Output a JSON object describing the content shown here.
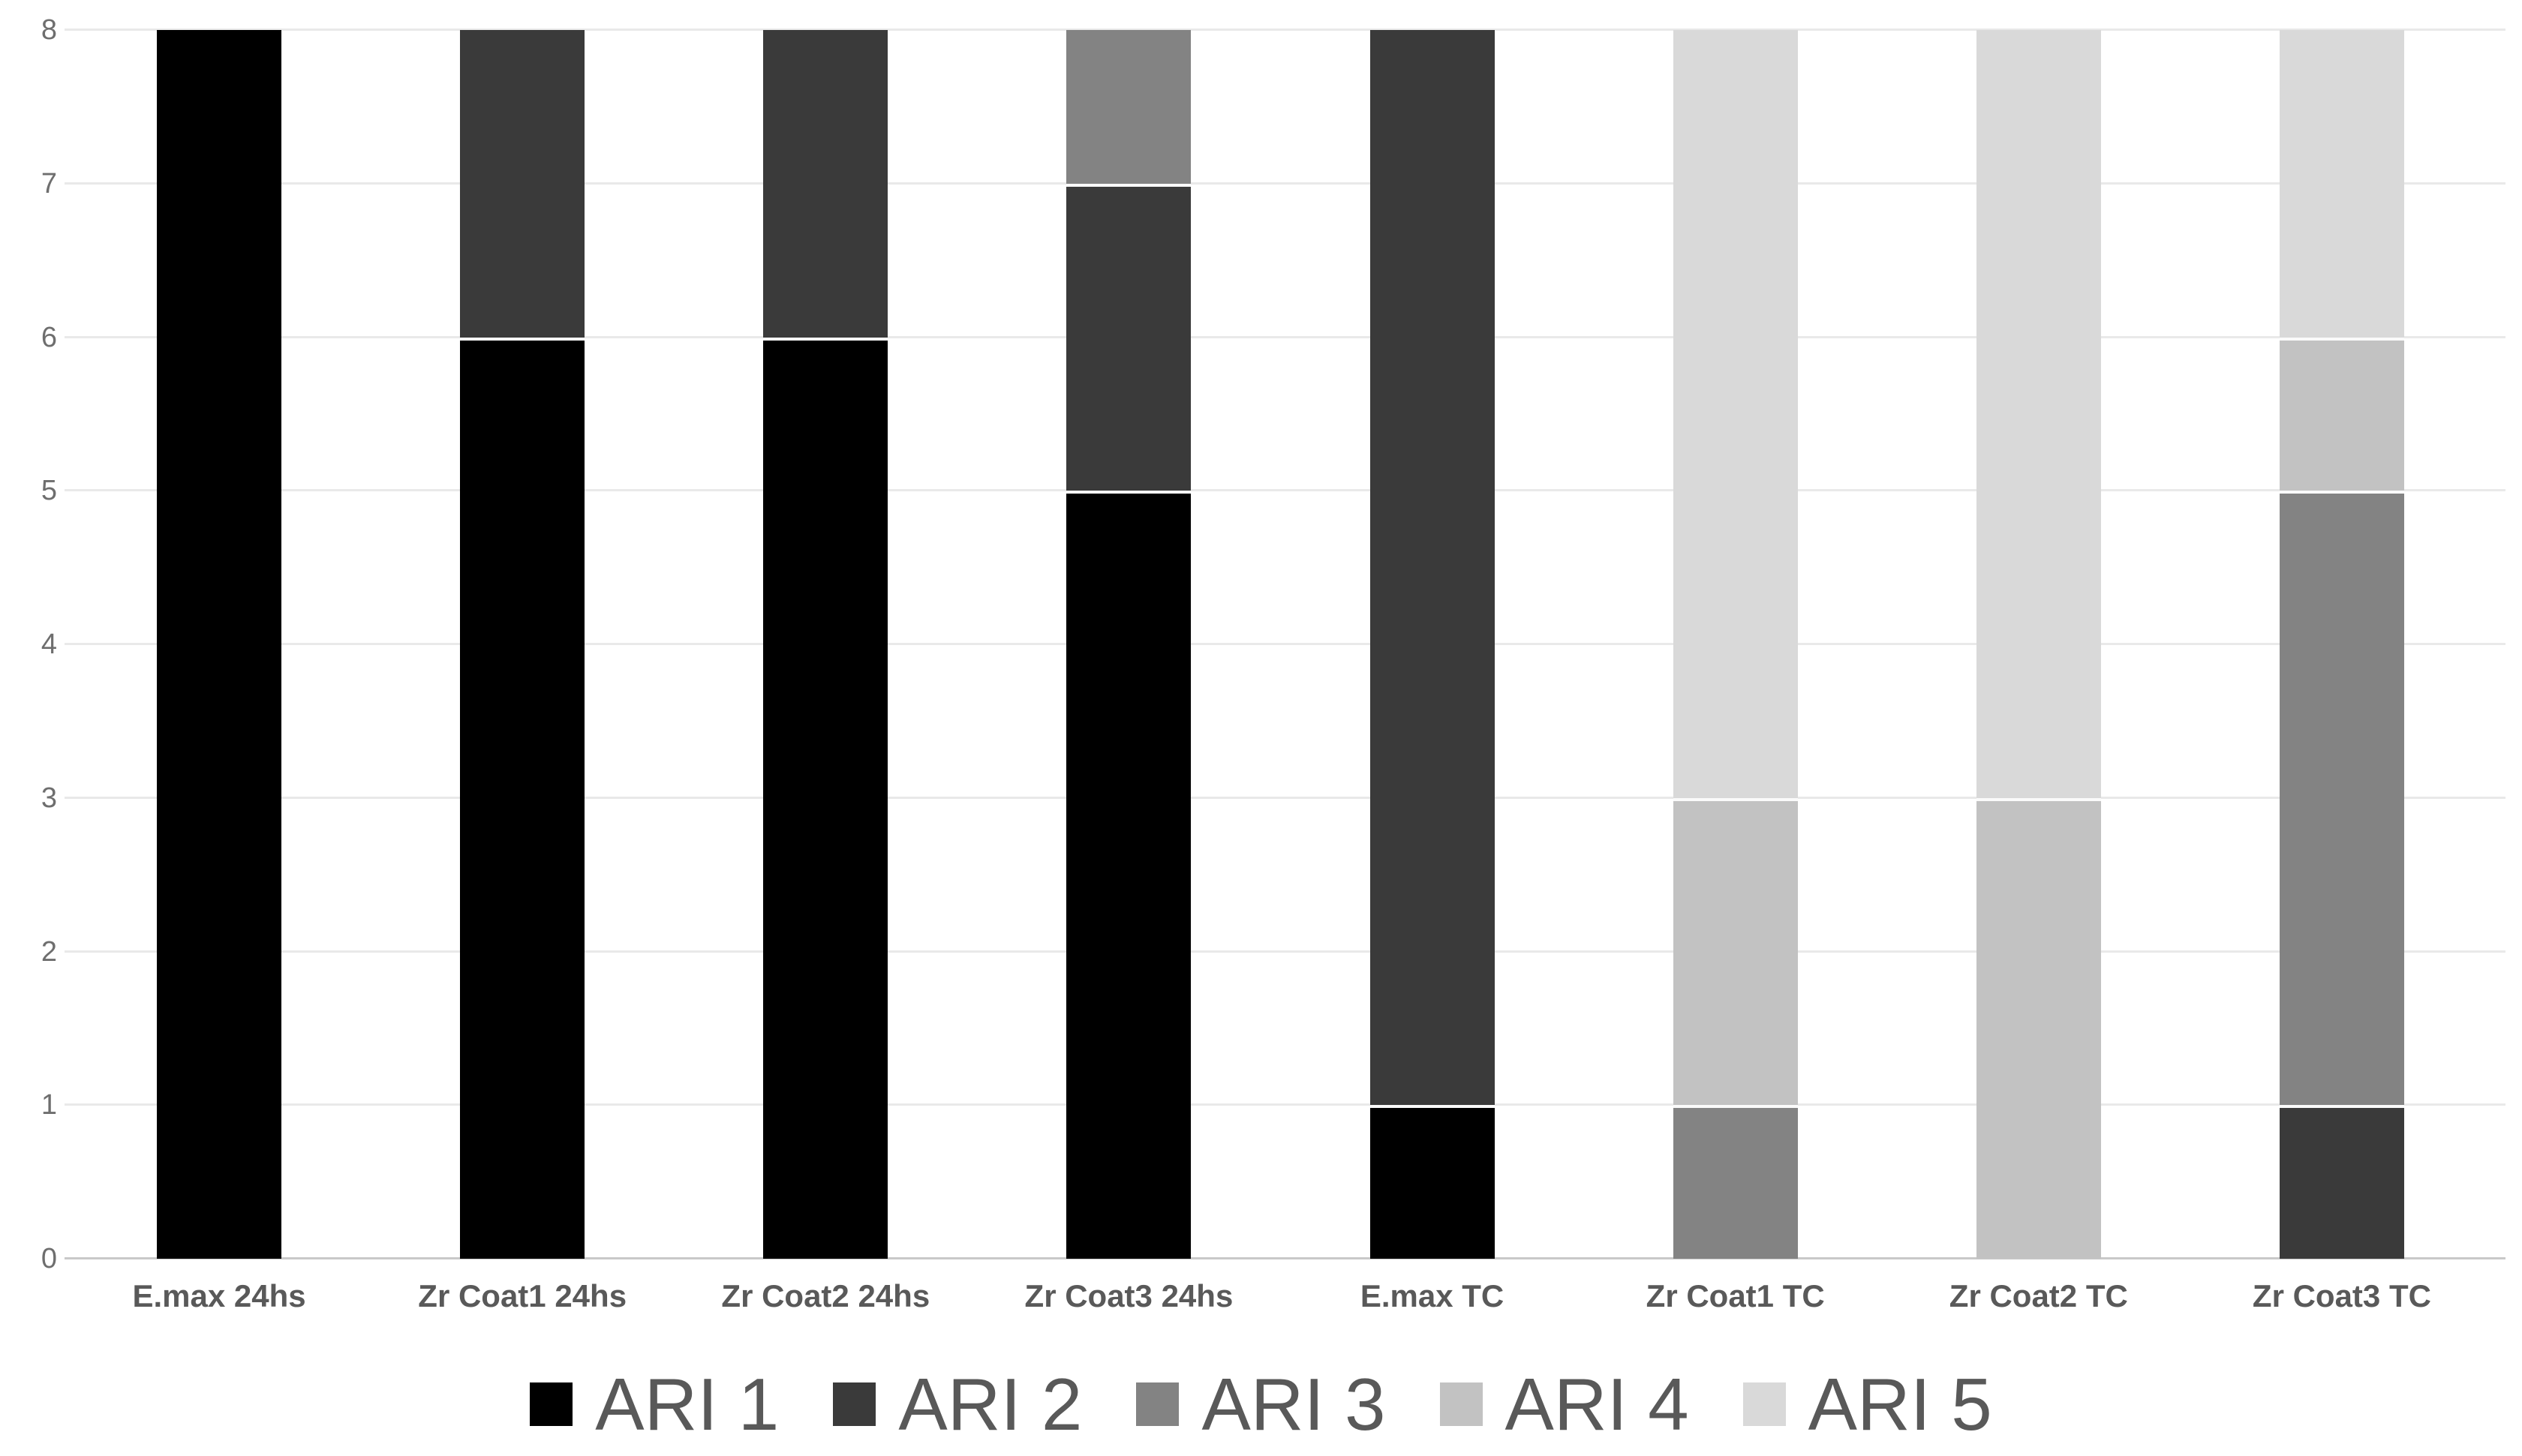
{
  "chart_data": {
    "type": "bar",
    "subtype": "stacked-vertical",
    "title": "",
    "xlabel": "",
    "ylabel": "",
    "categories": [
      "E.max 24hs",
      "Zr Coat1 24hs",
      "Zr Coat2 24hs",
      "Zr Coat3 24hs",
      "E.max TC",
      "Zr Coat1 TC",
      "Zr Coat2 TC",
      "Zr Coat3 TC"
    ],
    "series": [
      {
        "name": "ARI 1",
        "color": "#000000",
        "values": [
          8,
          6,
          6,
          5,
          1,
          0,
          0,
          0
        ]
      },
      {
        "name": "ARI 2",
        "color": "#3a3a3a",
        "values": [
          0,
          2,
          2,
          2,
          7,
          0,
          0,
          1
        ]
      },
      {
        "name": "ARI 3",
        "color": "#838383",
        "values": [
          0,
          0,
          0,
          1,
          0,
          1,
          0,
          4
        ]
      },
      {
        "name": "ARI 4",
        "color": "#c2c2c2",
        "values": [
          0,
          0,
          0,
          0,
          0,
          2,
          3,
          1
        ]
      },
      {
        "name": "ARI 5",
        "color": "#d9d9d9",
        "values": [
          0,
          0,
          0,
          0,
          0,
          5,
          5,
          2
        ]
      }
    ],
    "ylim": [
      0,
      8
    ],
    "yticks": [
      0,
      1,
      2,
      3,
      4,
      5,
      6,
      7,
      8
    ],
    "grid": true,
    "legend_position": "bottom",
    "legend_labels": [
      "ARI 1",
      "ARI 2",
      "ARI 3",
      "ARI 4",
      "ARI 5"
    ],
    "colors": {
      "background": "#ffffff",
      "gridline": "#e9e9e9",
      "axis_baseline": "#c9c9c9",
      "y_tick_label_text": "#6e6e6e",
      "category_label_text": "#595959",
      "legend_label_text": "#595959",
      "segment_separator": "#fafafa"
    }
  }
}
